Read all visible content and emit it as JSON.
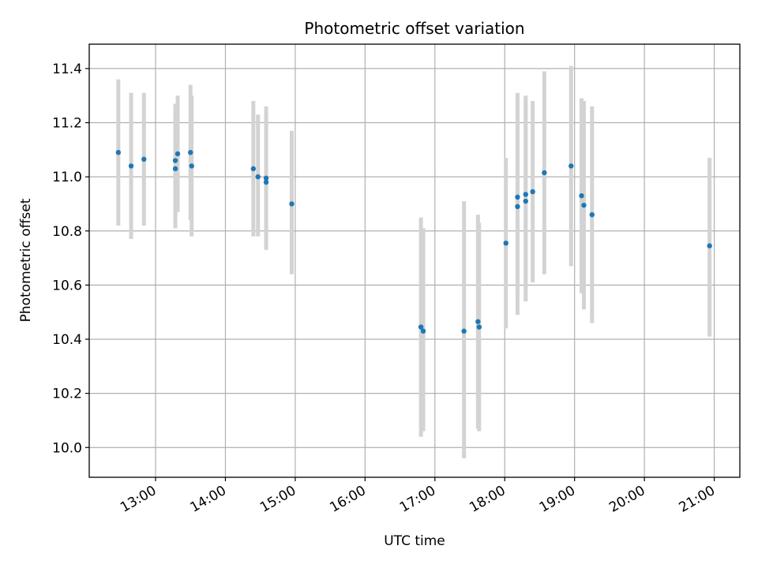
{
  "chart_data": {
    "type": "scatter",
    "title": "Photometric offset variation",
    "xlabel": "UTC time",
    "ylabel": "Photometric offset",
    "x_ticks": [
      "13:00",
      "14:00",
      "15:00",
      "16:00",
      "17:00",
      "18:00",
      "19:00",
      "20:00",
      "21:00"
    ],
    "y_ticks": [
      "10.0",
      "10.2",
      "10.4",
      "10.6",
      "10.8",
      "11.0",
      "11.2",
      "11.4"
    ],
    "xlim": [
      "12:03",
      "21:22"
    ],
    "ylim": [
      9.89,
      11.49
    ],
    "grid": true,
    "marker_color": "#1f77b4",
    "errorbar_color": "#d3d3d3",
    "points": [
      {
        "time": "12:28",
        "value": 11.09,
        "low": 10.82,
        "high": 11.36
      },
      {
        "time": "12:39",
        "value": 11.04,
        "low": 10.77,
        "high": 11.31
      },
      {
        "time": "12:50",
        "value": 11.065,
        "low": 10.82,
        "high": 11.31
      },
      {
        "time": "13:17",
        "value": 11.06,
        "low": 10.85,
        "high": 11.27
      },
      {
        "time": "13:17",
        "value": 11.03,
        "low": 10.81,
        "high": 11.25
      },
      {
        "time": "13:19",
        "value": 11.085,
        "low": 10.87,
        "high": 11.3
      },
      {
        "time": "13:30",
        "value": 11.09,
        "low": 10.84,
        "high": 11.34
      },
      {
        "time": "13:31",
        "value": 11.04,
        "low": 10.78,
        "high": 11.3
      },
      {
        "time": "14:24",
        "value": 11.03,
        "low": 10.78,
        "high": 11.28
      },
      {
        "time": "14:28",
        "value": 11.0,
        "low": 10.78,
        "high": 11.23
      },
      {
        "time": "14:35",
        "value": 10.995,
        "low": 10.74,
        "high": 11.26
      },
      {
        "time": "14:35",
        "value": 10.98,
        "low": 10.73,
        "high": 11.23
      },
      {
        "time": "14:57",
        "value": 10.9,
        "low": 10.64,
        "high": 11.17
      },
      {
        "time": "16:48",
        "value": 10.445,
        "low": 10.04,
        "high": 10.85
      },
      {
        "time": "16:50",
        "value": 10.43,
        "low": 10.06,
        "high": 10.81
      },
      {
        "time": "17:25",
        "value": 10.43,
        "low": 9.96,
        "high": 10.91
      },
      {
        "time": "17:37",
        "value": 10.465,
        "low": 10.07,
        "high": 10.86
      },
      {
        "time": "17:38",
        "value": 10.445,
        "low": 10.06,
        "high": 10.83
      },
      {
        "time": "18:01",
        "value": 10.755,
        "low": 10.44,
        "high": 11.07
      },
      {
        "time": "18:11",
        "value": 10.925,
        "low": 10.56,
        "high": 11.31
      },
      {
        "time": "18:11",
        "value": 10.89,
        "low": 10.49,
        "high": 11.29
      },
      {
        "time": "18:18",
        "value": 10.935,
        "low": 10.58,
        "high": 11.3
      },
      {
        "time": "18:18",
        "value": 10.91,
        "low": 10.54,
        "high": 11.28
      },
      {
        "time": "18:24",
        "value": 10.945,
        "low": 10.61,
        "high": 11.28
      },
      {
        "time": "18:34",
        "value": 11.015,
        "low": 10.64,
        "high": 11.39
      },
      {
        "time": "18:57",
        "value": 11.04,
        "low": 10.67,
        "high": 11.41
      },
      {
        "time": "19:06",
        "value": 10.93,
        "low": 10.57,
        "high": 11.29
      },
      {
        "time": "19:08",
        "value": 10.895,
        "low": 10.51,
        "high": 11.28
      },
      {
        "time": "19:15",
        "value": 10.86,
        "low": 10.46,
        "high": 11.26
      },
      {
        "time": "20:56",
        "value": 10.745,
        "low": 10.41,
        "high": 11.07
      }
    ]
  }
}
